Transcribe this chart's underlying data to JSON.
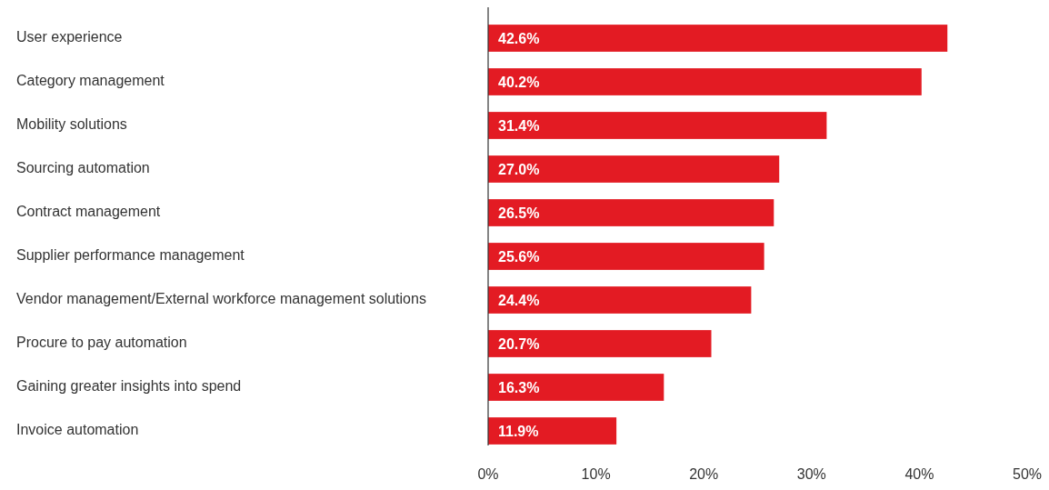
{
  "chart_data": {
    "type": "bar",
    "orientation": "horizontal",
    "categories": [
      "User experience",
      "Category management",
      "Mobility solutions",
      "Sourcing automation",
      "Contract management",
      "Supplier performance management",
      "Vendor management/External workforce management solutions",
      "Procure to pay automation",
      "Gaining greater insights into spend",
      "Invoice automation"
    ],
    "values": [
      42.6,
      40.2,
      31.4,
      27.0,
      26.5,
      25.6,
      24.4,
      20.7,
      16.3,
      11.9
    ],
    "value_labels": [
      "42.6%",
      "40.2%",
      "31.4%",
      "27.0%",
      "26.5%",
      "25.6%",
      "24.4%",
      "20.7%",
      "16.3%",
      "11.9%"
    ],
    "color": "#e31b23",
    "xlim": [
      0,
      50
    ],
    "xticks": [
      {
        "value": 0,
        "label": "0%"
      },
      {
        "value": 10,
        "label": "10%"
      },
      {
        "value": 20,
        "label": "20%"
      },
      {
        "value": 30,
        "label": "30%"
      },
      {
        "value": 40,
        "label": "40%"
      },
      {
        "value": 50,
        "label": "50%"
      }
    ],
    "grid": false
  }
}
